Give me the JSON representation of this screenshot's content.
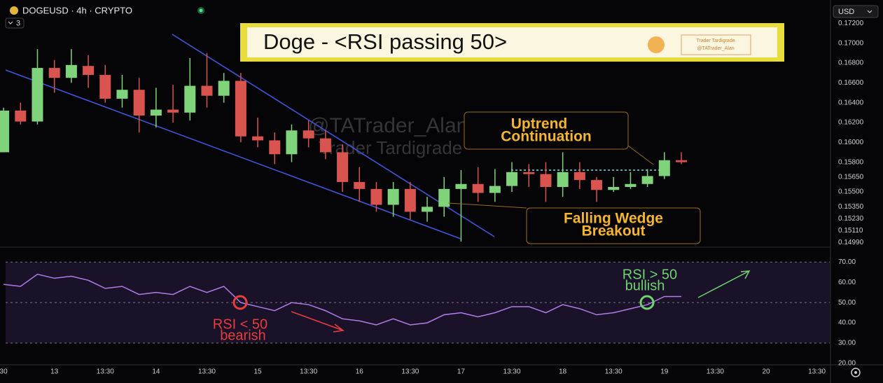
{
  "header": {
    "symbol": "DOGEUSD · 4h · CRYPTO",
    "indicators": "3",
    "currency": "USD"
  },
  "chart_data": [
    {
      "type": "candlestick",
      "title": "Doge - <RSI passing 50>",
      "badge": [
        "Trader Tardigrade",
        "@TATrader_Alan"
      ],
      "watermark": [
        "@TATrader_Alan",
        "Trader Tardigrade"
      ],
      "annotations": [
        {
          "lines": [
            "Uptrend",
            "Continuation"
          ]
        },
        {
          "lines": [
            "Falling Wedge",
            "Breakout"
          ]
        }
      ],
      "up_color": "#7fd37a",
      "down_color": "#d9534f",
      "open": [
        0.159,
        0.1632,
        0.1621,
        0.1675,
        0.1665,
        0.1677,
        0.1668,
        0.1644,
        0.1653,
        0.1627,
        0.1633,
        0.163,
        0.1657,
        0.1647,
        0.1662,
        0.1606,
        0.1602,
        0.1588,
        0.1612,
        0.1604,
        0.159,
        0.156,
        0.1553,
        0.1537,
        0.1553,
        0.153,
        0.1535,
        0.1553,
        0.1558,
        0.1549,
        0.1556,
        0.157,
        0.1568,
        0.1555,
        0.157,
        0.1562,
        0.1552,
        0.1555,
        0.1558,
        0.1566,
        0.1582
      ],
      "high": [
        0.1635,
        0.164,
        0.1694,
        0.1683,
        0.1694,
        0.1688,
        0.1678,
        0.1668,
        0.1665,
        0.1655,
        0.1658,
        0.1685,
        0.169,
        0.167,
        0.167,
        0.1625,
        0.161,
        0.1618,
        0.1622,
        0.1612,
        0.1598,
        0.1575,
        0.156,
        0.156,
        0.156,
        0.1545,
        0.1565,
        0.1572,
        0.1575,
        0.1573,
        0.158,
        0.1578,
        0.158,
        0.159,
        0.158,
        0.1565,
        0.1565,
        0.157,
        0.1573,
        0.159,
        0.159
      ],
      "low": [
        0.159,
        0.1618,
        0.1618,
        0.165,
        0.166,
        0.1655,
        0.164,
        0.1635,
        0.161,
        0.1615,
        0.162,
        0.1622,
        0.1635,
        0.164,
        0.16,
        0.1595,
        0.1578,
        0.158,
        0.1595,
        0.1583,
        0.155,
        0.154,
        0.153,
        0.1525,
        0.1522,
        0.152,
        0.1525,
        0.15,
        0.154,
        0.154,
        0.155,
        0.1555,
        0.154,
        0.1545,
        0.1553,
        0.154,
        0.155,
        0.1553,
        0.1555,
        0.1563,
        0.1578
      ],
      "close": [
        0.1632,
        0.1621,
        0.1675,
        0.1665,
        0.1678,
        0.1668,
        0.1644,
        0.1653,
        0.1627,
        0.1633,
        0.163,
        0.1657,
        0.1647,
        0.1662,
        0.1606,
        0.1602,
        0.1588,
        0.1612,
        0.1604,
        0.159,
        0.156,
        0.1553,
        0.1537,
        0.1553,
        0.153,
        0.1535,
        0.1553,
        0.1558,
        0.1549,
        0.1556,
        0.157,
        0.1568,
        0.1555,
        0.157,
        0.1562,
        0.1552,
        0.1555,
        0.1558,
        0.1566,
        0.1582,
        0.158
      ],
      "xlim": [
        0.12,
        48.76
      ],
      "ylim": [
        0.1495,
        0.174
      ],
      "yticks": [
        {
          "value": 0.172,
          "label": "0.17200"
        },
        {
          "value": 0.17,
          "label": "0.17000"
        },
        {
          "value": 0.168,
          "label": "0.16800"
        },
        {
          "value": 0.166,
          "label": "0.16600"
        },
        {
          "value": 0.164,
          "label": "0.16400"
        },
        {
          "value": 0.162,
          "label": "0.16200"
        },
        {
          "value": 0.16,
          "label": "0.16000"
        },
        {
          "value": 0.158,
          "label": "0.15800"
        },
        {
          "value": 0.1565,
          "label": "0.15650"
        },
        {
          "value": 0.155,
          "label": "0.15500"
        },
        {
          "value": 0.1535,
          "label": "0.15350"
        },
        {
          "value": 0.1523,
          "label": "0.15230"
        },
        {
          "value": 0.1511,
          "label": "0.15110"
        },
        {
          "value": 0.1499,
          "label": "0.14990"
        }
      ]
    },
    {
      "type": "line",
      "annotations": [
        {
          "lines": [
            "RSI < 50",
            "bearish"
          ]
        },
        {
          "lines": [
            "RSI > 50",
            "bullish"
          ]
        }
      ],
      "color": "#b07ce8",
      "values": [
        59,
        58,
        64,
        62,
        63,
        61,
        57,
        58,
        54,
        55,
        54,
        58,
        55,
        58,
        50,
        48,
        46,
        50,
        49,
        46,
        42,
        41,
        39,
        42,
        39,
        40,
        44,
        45,
        43,
        45,
        48,
        48,
        45,
        49,
        47,
        44,
        45,
        47,
        49,
        53,
        53
      ],
      "levels": [
        70,
        50,
        30
      ],
      "xlim": [
        0.12,
        48.76
      ],
      "ylim": [
        20,
        77
      ],
      "yticks": [
        {
          "value": 70,
          "label": "70.00"
        },
        {
          "value": 60,
          "label": "60.00"
        },
        {
          "value": 50,
          "label": "50.00"
        },
        {
          "value": 40,
          "label": "40.00"
        },
        {
          "value": 30,
          "label": "30.00"
        },
        {
          "value": 20,
          "label": "20.00"
        }
      ],
      "xticks": [
        {
          "value": 0,
          "label": "30"
        },
        {
          "value": 3,
          "label": "13"
        },
        {
          "value": 6,
          "label": "13:30"
        },
        {
          "value": 9,
          "label": "14"
        },
        {
          "value": 12,
          "label": "13:30"
        },
        {
          "value": 15,
          "label": "15"
        },
        {
          "value": 18,
          "label": "13:30"
        },
        {
          "value": 21,
          "label": "16"
        },
        {
          "value": 24,
          "label": "13:30"
        },
        {
          "value": 27,
          "label": "17"
        },
        {
          "value": 30,
          "label": "13:30"
        },
        {
          "value": 33,
          "label": "18"
        },
        {
          "value": 36,
          "label": "13:30"
        },
        {
          "value": 39,
          "label": "19"
        },
        {
          "value": 42,
          "label": "13:30"
        },
        {
          "value": 45,
          "label": "20"
        },
        {
          "value": 48,
          "label": "13:30"
        }
      ]
    }
  ]
}
